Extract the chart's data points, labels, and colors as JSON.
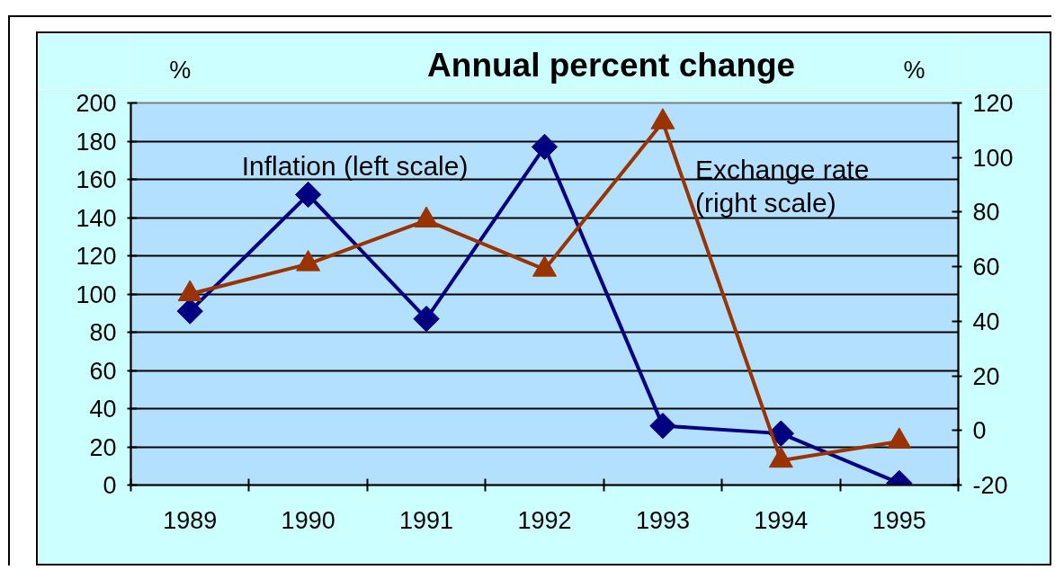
{
  "chart_data": {
    "type": "line",
    "title": "Annual percent change",
    "ylabel": "%",
    "y2label": "%",
    "categories": [
      "1989",
      "1990",
      "1991",
      "1992",
      "1993",
      "1994",
      "1995"
    ],
    "series": [
      {
        "name": "Inflation (left scale)",
        "color": "#000080",
        "marker": "diamond",
        "values": [
          91,
          152,
          87,
          177,
          31,
          27,
          1
        ]
      },
      {
        "name": "Exchange rate (right scale)",
        "color": "#993300",
        "marker": "triangle",
        "axis": "y2",
        "values": [
          50,
          61,
          77,
          59,
          113,
          -11,
          -4
        ]
      }
    ],
    "ylim": [
      0,
      200
    ],
    "yticks": [
      0,
      20,
      40,
      60,
      80,
      100,
      120,
      140,
      160,
      180,
      200
    ],
    "y2lim": [
      -20,
      120
    ],
    "y2ticks": [
      -20,
      0,
      20,
      40,
      60,
      80,
      100,
      120
    ],
    "grid": "y",
    "line_style": "solid"
  }
}
